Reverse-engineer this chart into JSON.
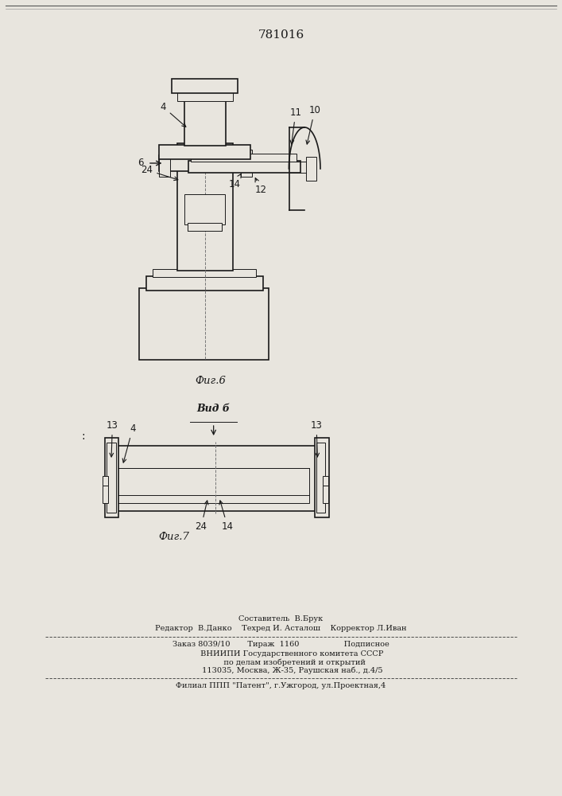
{
  "patent_number": "781016",
  "background_color": "#e8e5de",
  "line_color": "#1a1a1a",
  "fig6_label": "Фиг.6",
  "fig7_label": "Фиг.7",
  "vid_label": "Вид б",
  "footer_lines": [
    "Составитель  В.Брук",
    "Редактор  В.Данко    Техред И. Асталош    Корректор Л.Иван",
    "Заказ 8039/10       Тираж  1160                  Подписное",
    "         ВНИИПИ Государственного комитета СССР",
    "           по делам изобретений и открытий",
    "         113035, Москва, Ж-35, Раушская наб., д.4/5",
    "Филиал ППП \"Патент\", г.Ужгород, ул.Проектная,4"
  ]
}
